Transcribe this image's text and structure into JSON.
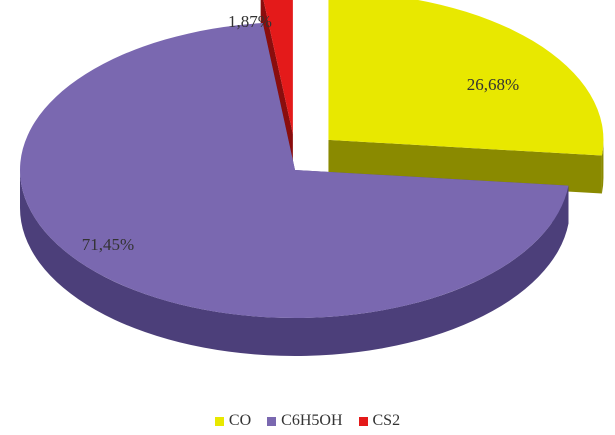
{
  "chart_data": {
    "type": "pie",
    "style": "3d-exploded",
    "categories": [
      "CO",
      "C6H5OH",
      "CS2"
    ],
    "values": [
      26.68,
      71.45,
      1.87
    ],
    "data_labels": [
      "26,68%",
      "71,45%",
      "1,87%"
    ],
    "colors": [
      "#e8e800",
      "#7a68b0",
      "#e41a1a"
    ],
    "side_colors": [
      "#8a8a00",
      "#4c3f7a",
      "#8a0d0d"
    ],
    "title": "",
    "legend": {
      "position": "bottom",
      "entries": [
        "CO",
        "C6H5OH",
        "CS2"
      ]
    }
  }
}
